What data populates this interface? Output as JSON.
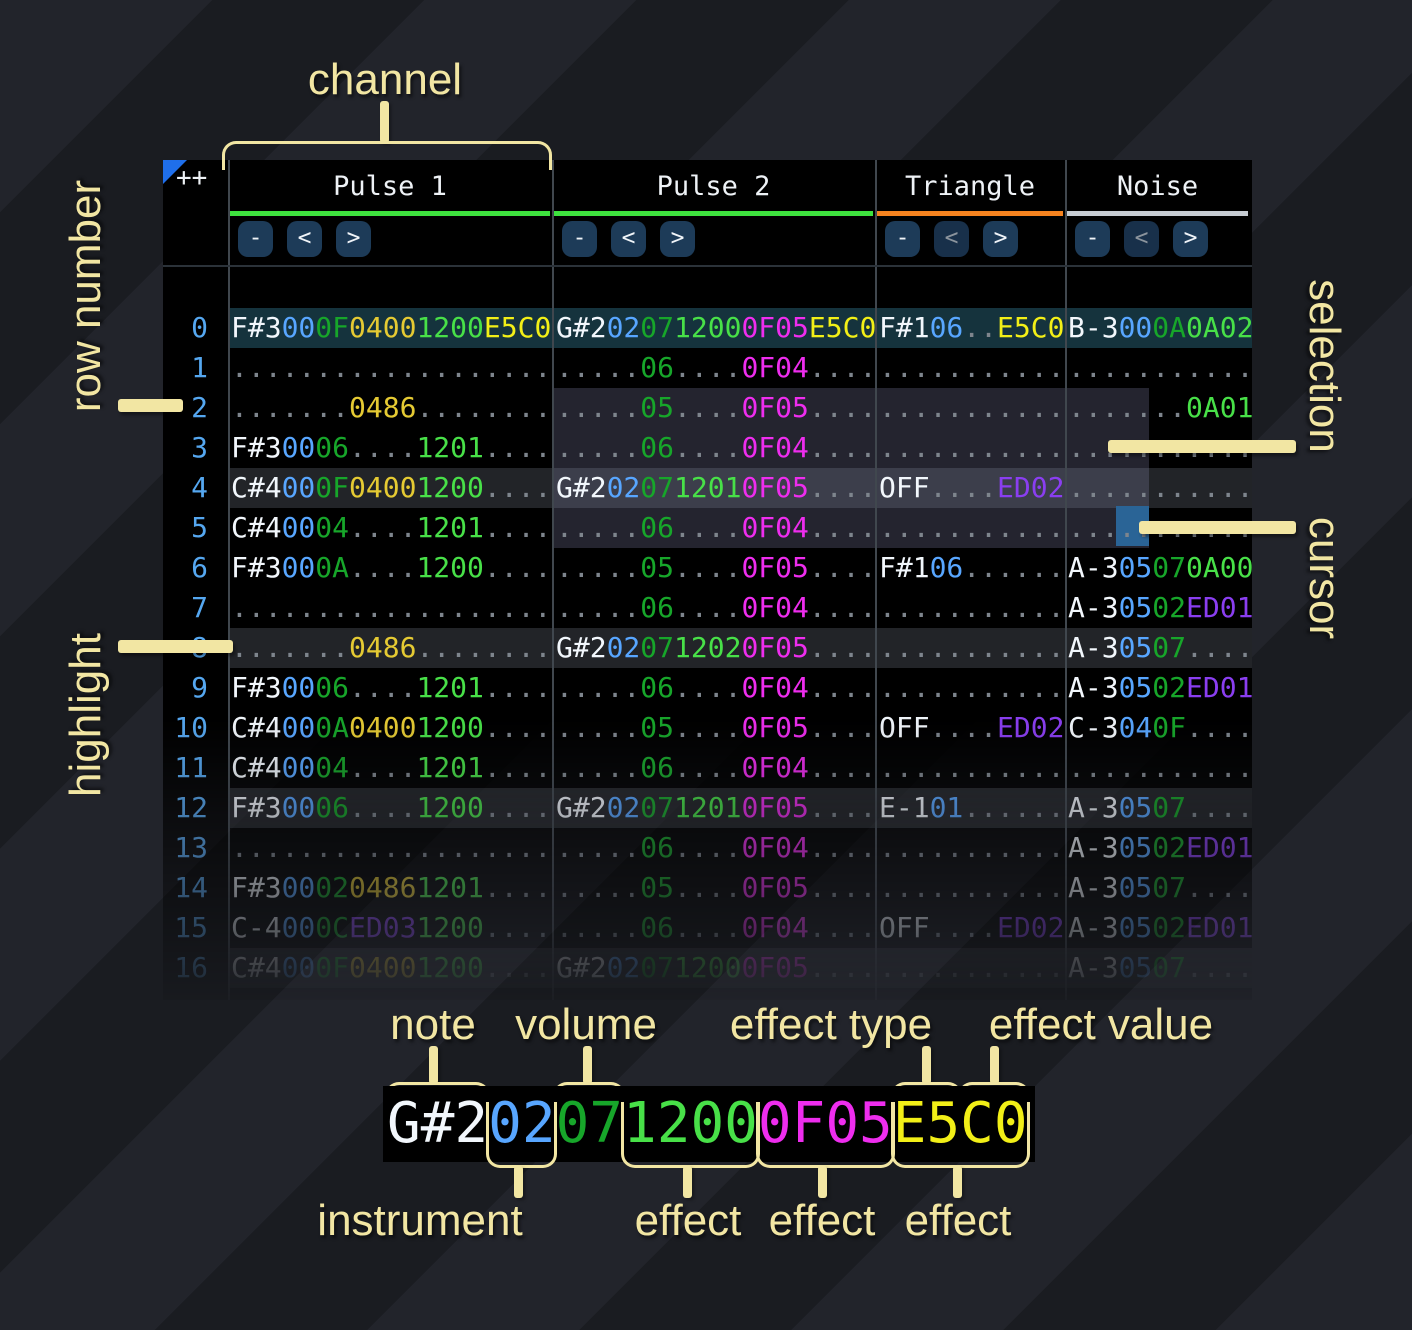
{
  "colors": {
    "page-a": "#22242b",
    "page-b": "#1a1c21",
    "panel-bg": "#000000",
    "row-current": "#15333d",
    "row-beat": "#222428",
    "selection": "rgba(130,130,170,0.28)",
    "cursor": "#2a6496",
    "sep": "#40474e",
    "rule": "#2b3239",
    "rownum": "#55a7f0",
    "corner": "#1f6feb",
    "header-fg": "#eef2f6",
    "btn-bg": "#1d3b58",
    "btn-fg": "#f0f4f8",
    "btn-dim": "#8b949d",
    "annot": "#f2e6a3",
    "n": "#f2f7fc",
    "i": "#58a6ff",
    "v": "#17a62a",
    "d": "#7e858d",
    "g": "#48e048",
    "m": "#ee2dee",
    "y": "#f2ef17",
    "o": "#e5ca33",
    "p": "#8a3ef0"
  },
  "header": {
    "corner": "++",
    "channels": [
      {
        "label": "Pulse 1",
        "underline": "#3ee23e",
        "buttons": [
          "-",
          "<",
          ">"
        ],
        "prev_dim": false
      },
      {
        "label": "Pulse 2",
        "underline": "#3ee23e",
        "buttons": [
          "-",
          "<",
          ">"
        ],
        "prev_dim": false
      },
      {
        "label": "Triangle",
        "underline": "#f5831f",
        "buttons": [
          "-",
          "<",
          ">"
        ],
        "prev_dim": true
      },
      {
        "label": "Noise",
        "underline": "#c6ccd2",
        "buttons": [
          "-",
          "<",
          ">"
        ],
        "prev_dim": true
      }
    ]
  },
  "annotations": {
    "channel": "channel",
    "row_number": "row number",
    "selection": "selection",
    "cursor": "cursor",
    "highlight": "highlight",
    "note": "note",
    "volume": "volume",
    "effect_type": "effect type",
    "effect_value": "effect value",
    "instrument": "instrument",
    "effect": "effect"
  },
  "legend": {
    "segments": [
      [
        "G#2",
        "n"
      ],
      [
        "02",
        "i"
      ],
      [
        "07",
        "v"
      ],
      [
        "1200",
        "g"
      ],
      [
        "0F05",
        "m"
      ],
      [
        "E5C0",
        "y"
      ]
    ]
  },
  "pattern": {
    "rows": [
      {
        "n": "0",
        "bg": "current",
        "p1": [
          [
            "F#3",
            "n"
          ],
          [
            "00",
            "i"
          ],
          [
            "0F",
            "v"
          ],
          [
            "0400",
            "o"
          ],
          [
            "1200",
            "g"
          ],
          [
            "E5C0",
            "y"
          ]
        ],
        "p2": [
          [
            "G#2",
            "n"
          ],
          [
            "02",
            "i"
          ],
          [
            "07",
            "v"
          ],
          [
            "1200",
            "g"
          ],
          [
            "0F05",
            "m"
          ],
          [
            "E5C0",
            "y"
          ]
        ],
        "tri": [
          [
            "F#1",
            "n"
          ],
          [
            "06",
            "i"
          ],
          [
            "..",
            "d"
          ],
          [
            "E5C0",
            "y"
          ]
        ],
        "noise": [
          [
            "B-3",
            "n"
          ],
          [
            "00",
            "i"
          ],
          [
            "0A",
            "v"
          ],
          [
            "0A02",
            "g"
          ]
        ]
      },
      {
        "n": "1",
        "p1": [
          [
            "...................",
            "d"
          ]
        ],
        "p2": [
          [
            ".....",
            "d"
          ],
          [
            "06",
            "v"
          ],
          [
            "....",
            "d"
          ],
          [
            "0F04",
            "m"
          ],
          [
            "....",
            "d"
          ]
        ],
        "tri": [
          [
            "...........",
            "d"
          ]
        ],
        "noise": [
          [
            "...........",
            "d"
          ]
        ]
      },
      {
        "n": "2",
        "p1": [
          [
            ".......",
            "d"
          ],
          [
            "0486",
            "o"
          ],
          [
            "........",
            "d"
          ]
        ],
        "p2": [
          [
            ".....",
            "d"
          ],
          [
            "05",
            "v"
          ],
          [
            "....",
            "d"
          ],
          [
            "0F05",
            "m"
          ],
          [
            "....",
            "d"
          ]
        ],
        "tri": [
          [
            "...........",
            "d"
          ]
        ],
        "noise": [
          [
            ".......",
            "d"
          ],
          [
            "0A01",
            "g"
          ]
        ]
      },
      {
        "n": "3",
        "p1": [
          [
            "F#3",
            "n"
          ],
          [
            "00",
            "i"
          ],
          [
            "06",
            "v"
          ],
          [
            "....",
            "d"
          ],
          [
            "1201",
            "g"
          ],
          [
            "....",
            "d"
          ]
        ],
        "p2": [
          [
            ".....",
            "d"
          ],
          [
            "06",
            "v"
          ],
          [
            "....",
            "d"
          ],
          [
            "0F04",
            "m"
          ],
          [
            "....",
            "d"
          ]
        ],
        "tri": [
          [
            "...........",
            "d"
          ]
        ],
        "noise": [
          [
            "...........",
            "d"
          ]
        ]
      },
      {
        "n": "4",
        "bg": "beat",
        "p1": [
          [
            "C#4",
            "n"
          ],
          [
            "00",
            "i"
          ],
          [
            "0F",
            "v"
          ],
          [
            "0400",
            "o"
          ],
          [
            "1200",
            "g"
          ],
          [
            "....",
            "d"
          ]
        ],
        "p2": [
          [
            "G#2",
            "n"
          ],
          [
            "02",
            "i"
          ],
          [
            "07",
            "v"
          ],
          [
            "1201",
            "g"
          ],
          [
            "0F05",
            "m"
          ],
          [
            "....",
            "d"
          ]
        ],
        "tri": [
          [
            "OFF",
            "n"
          ],
          [
            "....",
            "d"
          ],
          [
            "ED02",
            "p"
          ]
        ],
        "noise": [
          [
            "...........",
            "d"
          ]
        ]
      },
      {
        "n": "5",
        "p1": [
          [
            "C#4",
            "n"
          ],
          [
            "00",
            "i"
          ],
          [
            "04",
            "v"
          ],
          [
            "....",
            "d"
          ],
          [
            "1201",
            "g"
          ],
          [
            "....",
            "d"
          ]
        ],
        "p2": [
          [
            ".....",
            "d"
          ],
          [
            "06",
            "v"
          ],
          [
            "....",
            "d"
          ],
          [
            "0F04",
            "m"
          ],
          [
            "....",
            "d"
          ]
        ],
        "tri": [
          [
            "...........",
            "d"
          ]
        ],
        "noise": [
          [
            "...........",
            "d"
          ]
        ]
      },
      {
        "n": "6",
        "p1": [
          [
            "F#3",
            "n"
          ],
          [
            "00",
            "i"
          ],
          [
            "0A",
            "v"
          ],
          [
            "....",
            "d"
          ],
          [
            "1200",
            "g"
          ],
          [
            "....",
            "d"
          ]
        ],
        "p2": [
          [
            ".....",
            "d"
          ],
          [
            "05",
            "v"
          ],
          [
            "....",
            "d"
          ],
          [
            "0F05",
            "m"
          ],
          [
            "....",
            "d"
          ]
        ],
        "tri": [
          [
            "F#1",
            "n"
          ],
          [
            "06",
            "i"
          ],
          [
            "......",
            "d"
          ]
        ],
        "noise": [
          [
            "A-3",
            "n"
          ],
          [
            "05",
            "i"
          ],
          [
            "07",
            "v"
          ],
          [
            "0A00",
            "g"
          ]
        ]
      },
      {
        "n": "7",
        "p1": [
          [
            "...................",
            "d"
          ]
        ],
        "p2": [
          [
            ".....",
            "d"
          ],
          [
            "06",
            "v"
          ],
          [
            "....",
            "d"
          ],
          [
            "0F04",
            "m"
          ],
          [
            "....",
            "d"
          ]
        ],
        "tri": [
          [
            "...........",
            "d"
          ]
        ],
        "noise": [
          [
            "A-3",
            "n"
          ],
          [
            "05",
            "i"
          ],
          [
            "02",
            "v"
          ],
          [
            "ED01",
            "p"
          ]
        ]
      },
      {
        "n": "8",
        "bg": "beat",
        "p1": [
          [
            ".......",
            "d"
          ],
          [
            "0486",
            "o"
          ],
          [
            "........",
            "d"
          ]
        ],
        "p2": [
          [
            "G#2",
            "n"
          ],
          [
            "02",
            "i"
          ],
          [
            "07",
            "v"
          ],
          [
            "1202",
            "g"
          ],
          [
            "0F05",
            "m"
          ],
          [
            "....",
            "d"
          ]
        ],
        "tri": [
          [
            "...........",
            "d"
          ]
        ],
        "noise": [
          [
            "A-3",
            "n"
          ],
          [
            "05",
            "i"
          ],
          [
            "07",
            "v"
          ],
          [
            "....",
            "d"
          ]
        ]
      },
      {
        "n": "9",
        "p1": [
          [
            "F#3",
            "n"
          ],
          [
            "00",
            "i"
          ],
          [
            "06",
            "v"
          ],
          [
            "....",
            "d"
          ],
          [
            "1201",
            "g"
          ],
          [
            "....",
            "d"
          ]
        ],
        "p2": [
          [
            ".....",
            "d"
          ],
          [
            "06",
            "v"
          ],
          [
            "....",
            "d"
          ],
          [
            "0F04",
            "m"
          ],
          [
            "....",
            "d"
          ]
        ],
        "tri": [
          [
            "...........",
            "d"
          ]
        ],
        "noise": [
          [
            "A-3",
            "n"
          ],
          [
            "05",
            "i"
          ],
          [
            "02",
            "v"
          ],
          [
            "ED01",
            "p"
          ]
        ]
      },
      {
        "n": "10",
        "p1": [
          [
            "C#4",
            "n"
          ],
          [
            "00",
            "i"
          ],
          [
            "0A",
            "v"
          ],
          [
            "0400",
            "o"
          ],
          [
            "1200",
            "g"
          ],
          [
            "....",
            "d"
          ]
        ],
        "p2": [
          [
            ".....",
            "d"
          ],
          [
            "05",
            "v"
          ],
          [
            "....",
            "d"
          ],
          [
            "0F05",
            "m"
          ],
          [
            "....",
            "d"
          ]
        ],
        "tri": [
          [
            "OFF",
            "n"
          ],
          [
            "....",
            "d"
          ],
          [
            "ED02",
            "p"
          ]
        ],
        "noise": [
          [
            "C-3",
            "n"
          ],
          [
            "04",
            "i"
          ],
          [
            "0F",
            "v"
          ],
          [
            "....",
            "d"
          ]
        ]
      },
      {
        "n": "11",
        "p1": [
          [
            "C#4",
            "n"
          ],
          [
            "00",
            "i"
          ],
          [
            "04",
            "v"
          ],
          [
            "....",
            "d"
          ],
          [
            "1201",
            "g"
          ],
          [
            "....",
            "d"
          ]
        ],
        "p2": [
          [
            ".....",
            "d"
          ],
          [
            "06",
            "v"
          ],
          [
            "....",
            "d"
          ],
          [
            "0F04",
            "m"
          ],
          [
            "....",
            "d"
          ]
        ],
        "tri": [
          [
            "...........",
            "d"
          ]
        ],
        "noise": [
          [
            "...........",
            "d"
          ]
        ]
      },
      {
        "n": "12",
        "bg": "beat",
        "p1": [
          [
            "F#3",
            "n"
          ],
          [
            "00",
            "i"
          ],
          [
            "06",
            "v"
          ],
          [
            "....",
            "d"
          ],
          [
            "1200",
            "g"
          ],
          [
            "....",
            "d"
          ]
        ],
        "p2": [
          [
            "G#2",
            "n"
          ],
          [
            "02",
            "i"
          ],
          [
            "07",
            "v"
          ],
          [
            "1201",
            "g"
          ],
          [
            "0F05",
            "m"
          ],
          [
            "....",
            "d"
          ]
        ],
        "tri": [
          [
            "E-1",
            "n"
          ],
          [
            "01",
            "i"
          ],
          [
            "......",
            "d"
          ]
        ],
        "noise": [
          [
            "A-3",
            "n"
          ],
          [
            "05",
            "i"
          ],
          [
            "07",
            "v"
          ],
          [
            "....",
            "d"
          ]
        ]
      },
      {
        "n": "13",
        "p1": [
          [
            "...................",
            "d"
          ]
        ],
        "p2": [
          [
            ".....",
            "d"
          ],
          [
            "06",
            "v"
          ],
          [
            "....",
            "d"
          ],
          [
            "0F04",
            "m"
          ],
          [
            "....",
            "d"
          ]
        ],
        "tri": [
          [
            "...........",
            "d"
          ]
        ],
        "noise": [
          [
            "A-3",
            "n"
          ],
          [
            "05",
            "i"
          ],
          [
            "02",
            "v"
          ],
          [
            "ED01",
            "p"
          ]
        ]
      },
      {
        "n": "14",
        "p1": [
          [
            "F#3",
            "n"
          ],
          [
            "00",
            "i"
          ],
          [
            "02",
            "v"
          ],
          [
            "0486",
            "o"
          ],
          [
            "1201",
            "g"
          ],
          [
            "....",
            "d"
          ]
        ],
        "p2": [
          [
            ".....",
            "d"
          ],
          [
            "05",
            "v"
          ],
          [
            "....",
            "d"
          ],
          [
            "0F05",
            "m"
          ],
          [
            "....",
            "d"
          ]
        ],
        "tri": [
          [
            "...........",
            "d"
          ]
        ],
        "noise": [
          [
            "A-3",
            "n"
          ],
          [
            "05",
            "i"
          ],
          [
            "07",
            "v"
          ],
          [
            "....",
            "d"
          ]
        ]
      },
      {
        "n": "15",
        "p1": [
          [
            "C-4",
            "n"
          ],
          [
            "00",
            "i"
          ],
          [
            "0C",
            "v"
          ],
          [
            "ED03",
            "p"
          ],
          [
            "1200",
            "g"
          ],
          [
            "....",
            "d"
          ]
        ],
        "p2": [
          [
            ".....",
            "d"
          ],
          [
            "06",
            "v"
          ],
          [
            "....",
            "d"
          ],
          [
            "0F04",
            "m"
          ],
          [
            "....",
            "d"
          ]
        ],
        "tri": [
          [
            "OFF",
            "n"
          ],
          [
            "....",
            "d"
          ],
          [
            "ED02",
            "p"
          ]
        ],
        "noise": [
          [
            "A-3",
            "n"
          ],
          [
            "05",
            "i"
          ],
          [
            "02",
            "v"
          ],
          [
            "ED01",
            "p"
          ]
        ]
      },
      {
        "n": "16",
        "bg": "beat",
        "p1": [
          [
            "C#4",
            "n"
          ],
          [
            "00",
            "i"
          ],
          [
            "0F",
            "v"
          ],
          [
            "0400",
            "o"
          ],
          [
            "1200",
            "g"
          ],
          [
            "....",
            "d"
          ]
        ],
        "p2": [
          [
            "G#2",
            "n"
          ],
          [
            "02",
            "i"
          ],
          [
            "07",
            "v"
          ],
          [
            "1200",
            "g"
          ],
          [
            "0F05",
            "m"
          ],
          [
            "....",
            "d"
          ]
        ],
        "tri": [
          [
            "...........",
            "d"
          ]
        ],
        "noise": [
          [
            "A-3",
            "n"
          ],
          [
            "05",
            "i"
          ],
          [
            "07",
            "v"
          ],
          [
            "....",
            "d"
          ]
        ]
      }
    ]
  }
}
